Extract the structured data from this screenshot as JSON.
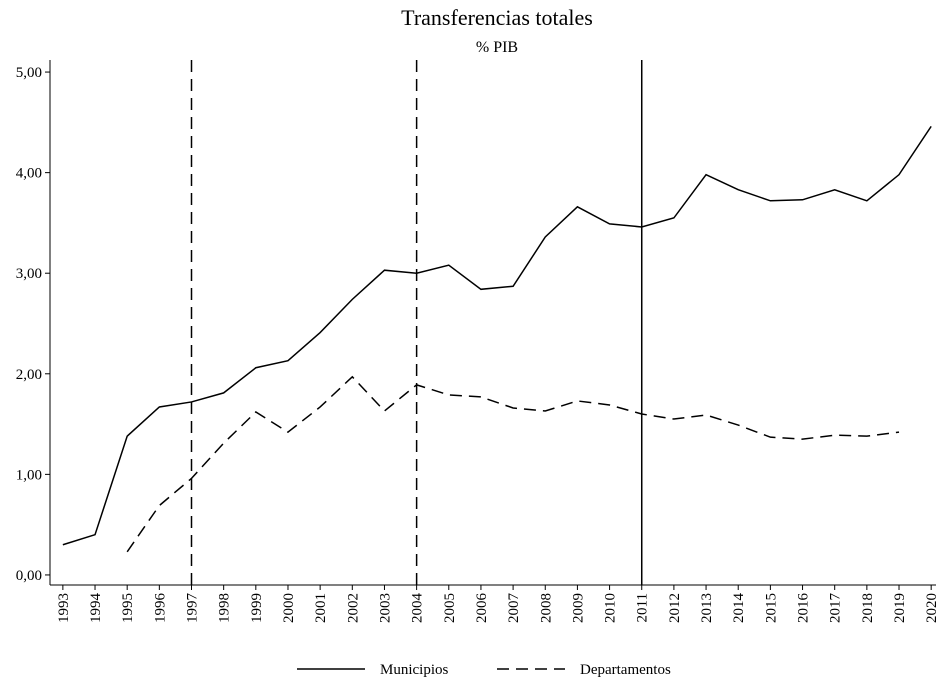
{
  "chart_data": {
    "type": "line",
    "title": "Transferencias totales",
    "subtitle": "% PIB",
    "x": [
      1993,
      1994,
      1995,
      1996,
      1997,
      1998,
      1999,
      2000,
      2001,
      2002,
      2003,
      2004,
      2005,
      2006,
      2007,
      2008,
      2009,
      2010,
      2011,
      2012,
      2013,
      2014,
      2015,
      2016,
      2017,
      2018,
      2019,
      2020
    ],
    "series": [
      {
        "name": "Municipios",
        "color": "#000000",
        "dash": "solid",
        "values": [
          0.3,
          0.4,
          1.38,
          1.67,
          1.72,
          1.81,
          2.06,
          2.13,
          2.41,
          2.74,
          3.03,
          3.0,
          3.08,
          2.84,
          2.87,
          3.36,
          3.66,
          3.49,
          3.46,
          3.55,
          3.98,
          3.83,
          3.72,
          3.73,
          3.83,
          3.72,
          3.98,
          4.46
        ]
      },
      {
        "name": "Departamentos",
        "color": "#000000",
        "dash": "dashed",
        "values": [
          null,
          null,
          0.23,
          0.69,
          0.96,
          1.31,
          1.62,
          1.42,
          1.67,
          1.97,
          1.63,
          1.89,
          1.79,
          1.77,
          1.66,
          1.63,
          1.73,
          1.69,
          1.6,
          1.55,
          1.59,
          1.49,
          1.37,
          1.35,
          1.39,
          1.38,
          1.42,
          null
        ]
      }
    ],
    "xlim": [
      1992.6,
      2020.15
    ],
    "xticks": [
      1993,
      1994,
      1995,
      1996,
      1997,
      1998,
      1999,
      2000,
      2001,
      2002,
      2003,
      2004,
      2005,
      2006,
      2007,
      2008,
      2009,
      2010,
      2011,
      2012,
      2013,
      2014,
      2015,
      2016,
      2017,
      2018,
      2019,
      2020
    ],
    "ylim": [
      -0.1,
      5.1
    ],
    "yticks": [
      {
        "value": 0,
        "label": "0,00"
      },
      {
        "value": 1,
        "label": "1,00"
      },
      {
        "value": 2,
        "label": "2,00"
      },
      {
        "value": 3,
        "label": "3,00"
      },
      {
        "value": 4,
        "label": "4,00"
      },
      {
        "value": 5,
        "label": "5,00"
      }
    ],
    "vlines": [
      {
        "x": 1997,
        "dash": "dashed"
      },
      {
        "x": 2004,
        "dash": "dashed"
      },
      {
        "x": 2011,
        "dash": "solid"
      }
    ],
    "legend": "bottom"
  }
}
